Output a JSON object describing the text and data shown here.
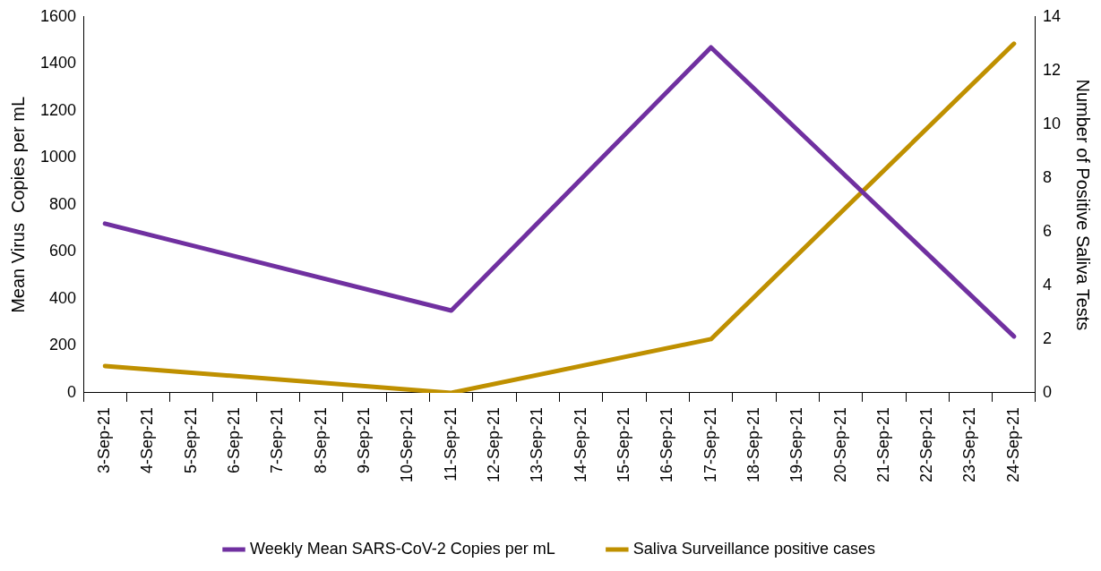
{
  "chart_data": {
    "type": "line",
    "ylabel": "Mean Virus  Copies per mL",
    "y2label": "Number of Positive Saliva Tests",
    "categories": [
      "3-Sep-21",
      "4-Sep-21",
      "5-Sep-21",
      "6-Sep-21",
      "7-Sep-21",
      "8-Sep-21",
      "9-Sep-21",
      "10-Sep-21",
      "11-Sep-21",
      "12-Sep-21",
      "13-Sep-21",
      "14-Sep-21",
      "15-Sep-21",
      "16-Sep-21",
      "17-Sep-21",
      "18-Sep-21",
      "19-Sep-21",
      "20-Sep-21",
      "21-Sep-21",
      "22-Sep-21",
      "23-Sep-21",
      "24-Sep-21"
    ],
    "series": [
      {
        "name": "Weekly Mean SARS-CoV-2 Copies per mL",
        "color": "#7030a0",
        "values": [
          720,
          null,
          null,
          null,
          null,
          null,
          null,
          null,
          350,
          null,
          null,
          null,
          null,
          null,
          1470,
          null,
          null,
          null,
          null,
          null,
          null,
          240
        ]
      },
      {
        "name": "Saliva Surveillance positive cases",
        "color": "#bf9000",
        "axis": "y2",
        "values": [
          1,
          null,
          null,
          null,
          null,
          null,
          null,
          null,
          0,
          null,
          null,
          null,
          null,
          null,
          2,
          null,
          null,
          null,
          null,
          null,
          null,
          13
        ]
      }
    ],
    "ylim": [
      0,
      1600
    ],
    "yticks": [
      0,
      200,
      400,
      600,
      800,
      1000,
      1200,
      1400,
      1600
    ],
    "y2lim": [
      0,
      14
    ],
    "y2ticks": [
      0,
      2,
      4,
      6,
      8,
      10,
      12,
      14
    ],
    "grid": false,
    "legend": "bottom",
    "marker": "none",
    "line_style": "solid"
  }
}
